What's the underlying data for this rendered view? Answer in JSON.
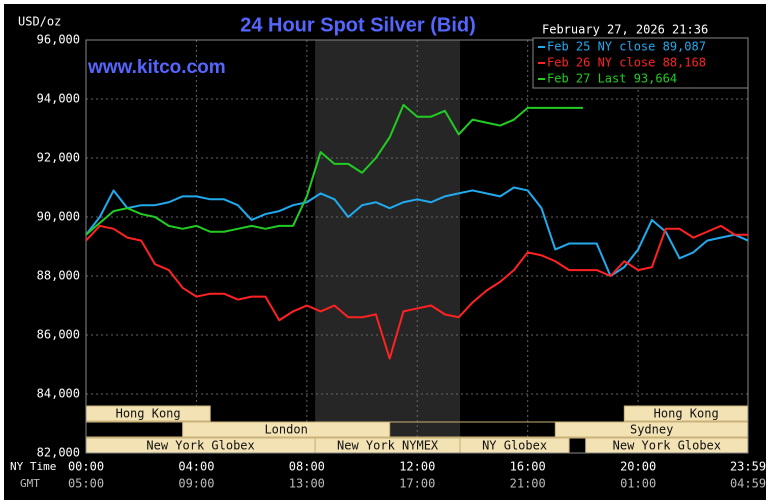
{
  "chart_data": {
    "type": "line",
    "title": "24 Hour Spot Silver (Bid)",
    "date": "February 27, 2026 21:36",
    "watermark": "www.kitco.com",
    "y_label": "USD/oz",
    "x_row_labels": [
      "NY Time",
      "GMT"
    ],
    "ylim": [
      82000,
      96000
    ],
    "yticks": [
      {
        "value": 82000,
        "label": "82,000"
      },
      {
        "value": 84000,
        "label": "84,000"
      },
      {
        "value": 86000,
        "label": "86,000"
      },
      {
        "value": 88000,
        "label": "88,000"
      },
      {
        "value": 90000,
        "label": "90,000"
      },
      {
        "value": 92000,
        "label": "92,000"
      },
      {
        "value": 94000,
        "label": "94,000"
      },
      {
        "value": 96000,
        "label": "96,000"
      }
    ],
    "xlim": [
      0,
      23.98
    ],
    "xticks": [
      {
        "value": 0,
        "label": "00:00"
      },
      {
        "value": 4,
        "label": "04:00"
      },
      {
        "value": 8,
        "label": "08:00"
      },
      {
        "value": 12,
        "label": "12:00"
      },
      {
        "value": 16,
        "label": "16:00"
      },
      {
        "value": 20,
        "label": "20:00"
      },
      {
        "value": 23.98,
        "label": "23:59"
      }
    ],
    "gmt_labels": [
      "05:00",
      "09:00",
      "13:00",
      "17:00",
      "21:00",
      "01:00",
      "04:59"
    ],
    "grid": true,
    "x": [
      0,
      0.5,
      1,
      1.5,
      2,
      2.5,
      3,
      3.5,
      4,
      4.5,
      5,
      5.5,
      6,
      6.5,
      7,
      7.5,
      8,
      8.5,
      9,
      9.5,
      10,
      10.5,
      11,
      11.5,
      12,
      12.5,
      13,
      13.5,
      14,
      14.5,
      15,
      15.5,
      16,
      16.5,
      17,
      17.5,
      18,
      18.5,
      19,
      19.5,
      20,
      20.5,
      21,
      21.5,
      22,
      22.5,
      23,
      23.5,
      23.98
    ],
    "series": [
      {
        "name": "Feb 25 NY close 89,087",
        "color": "#22aaee",
        "values": [
          89400,
          90000,
          90900,
          90300,
          90400,
          90400,
          90500,
          90700,
          90700,
          90600,
          90600,
          90400,
          89900,
          90100,
          90200,
          90400,
          90500,
          90800,
          90600,
          90000,
          90400,
          90500,
          90300,
          90500,
          90600,
          90500,
          90700,
          90800,
          90900,
          90800,
          90700,
          91000,
          90900,
          90300,
          88900,
          89100,
          89100,
          89100,
          88000,
          88300,
          88900,
          89900,
          89500,
          88600,
          88800,
          89200,
          89300,
          89400,
          89200
        ]
      },
      {
        "name": "Feb 26 NY close 88,168",
        "color": "#ff2222",
        "values": [
          89200,
          89700,
          89600,
          89300,
          89200,
          88400,
          88200,
          87600,
          87300,
          87400,
          87400,
          87200,
          87300,
          87300,
          86500,
          86800,
          87000,
          86800,
          87000,
          86600,
          86600,
          86700,
          85200,
          86800,
          86900,
          87000,
          86700,
          86600,
          87100,
          87500,
          87800,
          88200,
          88800,
          88700,
          88500,
          88200,
          88200,
          88200,
          88000,
          88500,
          88200,
          88300,
          89600,
          89600,
          89300,
          89500,
          89700,
          89400,
          89400
        ]
      },
      {
        "name": "Feb 27 Last 93,664",
        "color": "#22cc22",
        "values": [
          89400,
          89800,
          90200,
          90300,
          90100,
          90000,
          89700,
          89600,
          89700,
          89500,
          89500,
          89600,
          89700,
          89600,
          89700,
          89700,
          90700,
          92200,
          91800,
          91800,
          91500,
          92000,
          92700,
          93800,
          93400,
          93400,
          93600,
          92800,
          93300,
          93200,
          93100,
          93300,
          93700,
          93700,
          93700,
          93700,
          93700,
          null,
          null,
          null,
          null,
          null,
          null,
          null,
          null,
          null,
          null,
          null,
          null
        ]
      }
    ],
    "sessions": [
      [
        {
          "label": "Hong Kong",
          "start": 0,
          "end": 4.5
        },
        {
          "label": "Hong Kong",
          "start": 19.5,
          "end": 23.98
        }
      ],
      [
        {
          "label": "London",
          "start": 3.5,
          "end": 11
        },
        {
          "label": "Sydney",
          "start": 17,
          "end": 23.98
        }
      ],
      [
        {
          "label": "New York Globex",
          "start": 0,
          "end": 8.3
        },
        {
          "label": "New York NYMEX",
          "start": 8.3,
          "end": 13.55,
          "highlight": true
        },
        {
          "label": "NY Globex",
          "start": 13.55,
          "end": 17.5
        },
        {
          "label": "New York Globex",
          "start": 18.1,
          "end": 23.98
        }
      ]
    ]
  }
}
